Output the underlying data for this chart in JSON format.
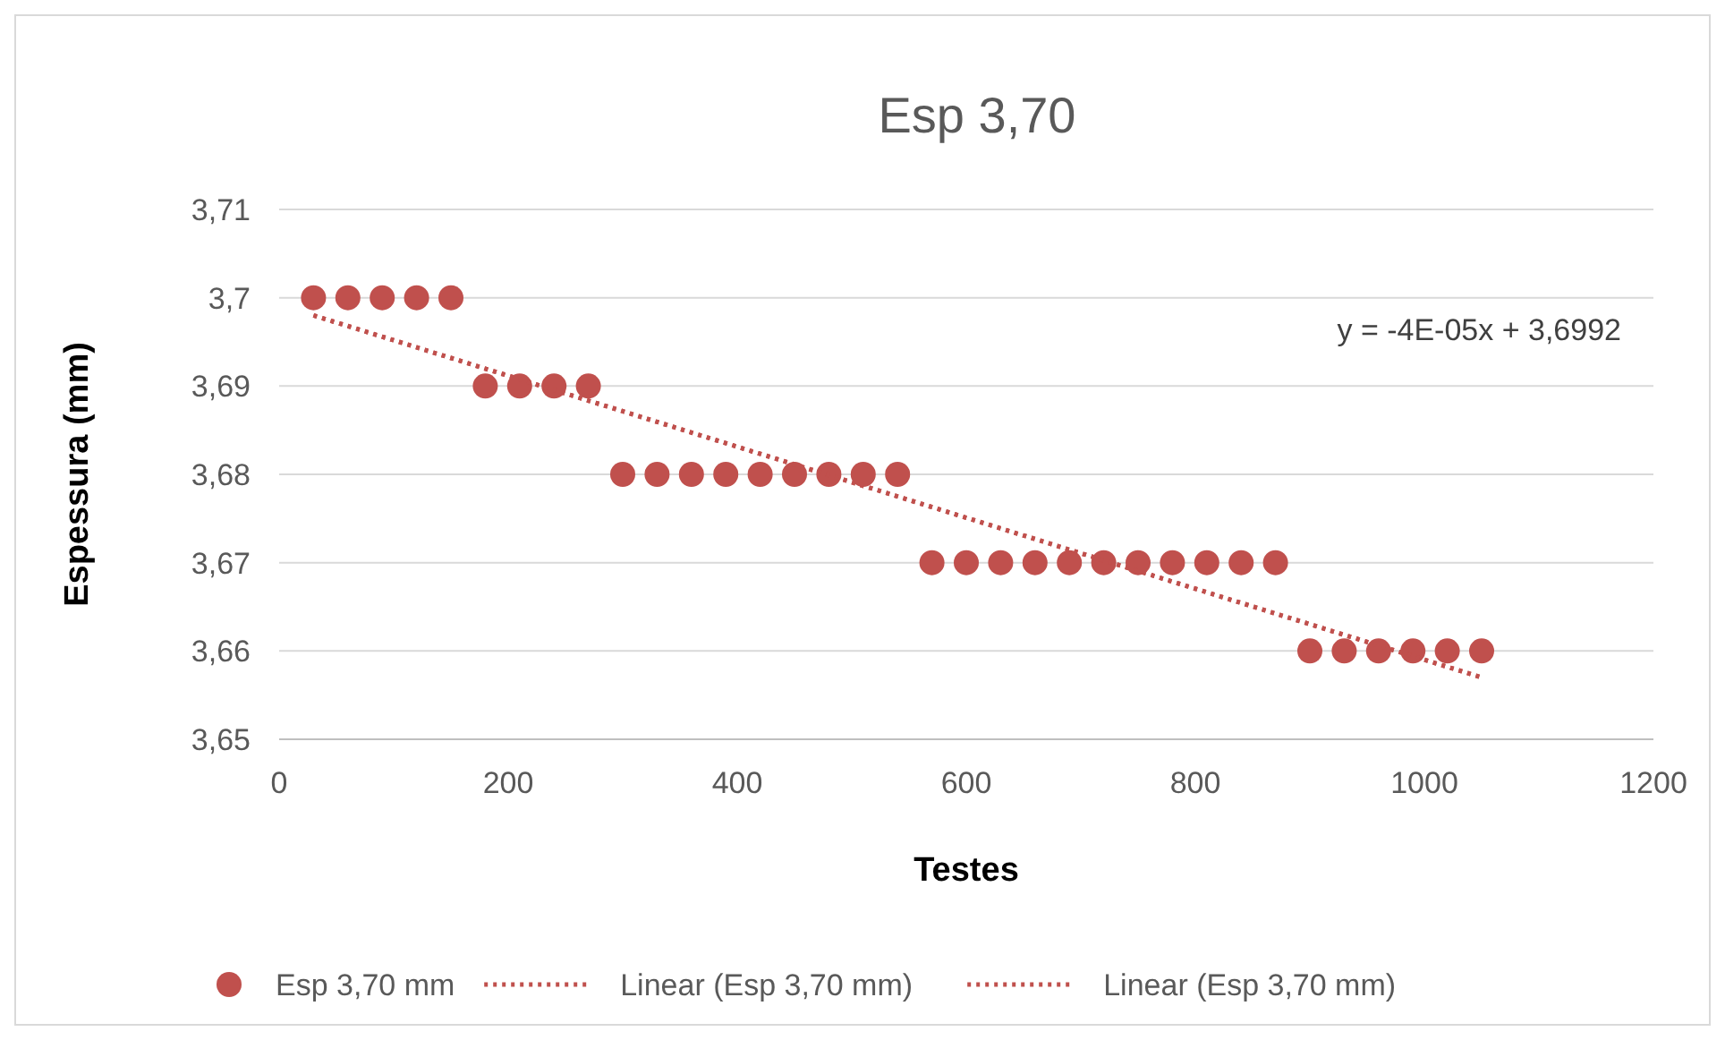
{
  "chart_data": {
    "type": "scatter",
    "title": "Esp 3,70",
    "xlabel": "Testes",
    "ylabel": "Espessura (mm)",
    "xlim": [
      0,
      1200
    ],
    "xticks": [
      0,
      200,
      400,
      600,
      800,
      1000,
      1200
    ],
    "ylim": [
      3.65,
      3.71
    ],
    "yticks": [
      {
        "value": 3.65,
        "label": "3,65"
      },
      {
        "value": 3.66,
        "label": "3,66"
      },
      {
        "value": 3.67,
        "label": "3,67"
      },
      {
        "value": 3.68,
        "label": "3,68"
      },
      {
        "value": 3.69,
        "label": "3,69"
      },
      {
        "value": 3.7,
        "label": "3,7"
      },
      {
        "value": 3.71,
        "label": "3,71"
      }
    ],
    "grid": "y",
    "legend": "bottom",
    "annotations": [
      "y = -4E-05x + 3,6992"
    ],
    "series": [
      {
        "name": "Esp 3,70 mm",
        "marker": "circle",
        "color": "#c0504d",
        "x": [
          30,
          60,
          90,
          120,
          150,
          180,
          210,
          240,
          270,
          300,
          330,
          360,
          390,
          420,
          450,
          480,
          510,
          540,
          570,
          600,
          630,
          660,
          690,
          720,
          750,
          780,
          810,
          840,
          870,
          900,
          930,
          960,
          990,
          1020,
          1050
        ],
        "values": [
          3.7,
          3.7,
          3.7,
          3.7,
          3.7,
          3.69,
          3.69,
          3.69,
          3.69,
          3.68,
          3.68,
          3.68,
          3.68,
          3.68,
          3.68,
          3.68,
          3.68,
          3.68,
          3.67,
          3.67,
          3.67,
          3.67,
          3.67,
          3.67,
          3.67,
          3.67,
          3.67,
          3.67,
          3.67,
          3.66,
          3.66,
          3.66,
          3.66,
          3.66,
          3.66
        ]
      },
      {
        "name": "Linear (Esp 3,70 mm)",
        "type": "line",
        "line_style": "dotted",
        "color": "#c0504d",
        "x": [
          30,
          1050
        ],
        "values": [
          3.698,
          3.657
        ]
      },
      {
        "name": "Linear (Esp 3,70 mm)",
        "type": "line",
        "line_style": "dotted",
        "color": "#c0504d",
        "x": [
          30,
          1050
        ],
        "values": [
          3.698,
          3.657
        ]
      }
    ]
  }
}
